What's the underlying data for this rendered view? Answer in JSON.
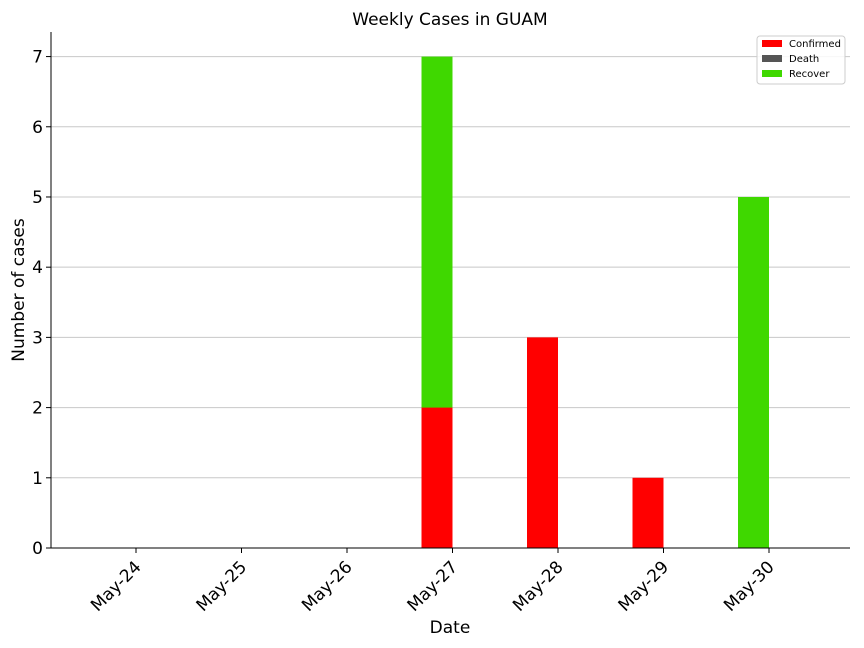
{
  "chart_data": {
    "type": "bar",
    "title": "Weekly Cases in GUAM",
    "xlabel": "Date",
    "ylabel": "Number of cases",
    "categories": [
      "May-24",
      "May-25",
      "May-26",
      "May-27",
      "May-28",
      "May-29",
      "May-30"
    ],
    "series": [
      {
        "name": "Recover",
        "color": "#3fd800",
        "values": [
          0,
          0,
          0,
          7,
          0,
          0,
          5
        ]
      },
      {
        "name": "Confirmed",
        "color": "#ff0000",
        "values": [
          0,
          0,
          0,
          2,
          3,
          1,
          0
        ]
      },
      {
        "name": "Death",
        "color": "#555555",
        "values": [
          0,
          0,
          0,
          0,
          0,
          0,
          0
        ]
      }
    ],
    "legend_order": [
      "Confirmed",
      "Death",
      "Recover"
    ],
    "yticks": [
      0,
      1,
      2,
      3,
      4,
      5,
      6,
      7
    ],
    "ylim": [
      0,
      7.35
    ],
    "grid": "horizontal",
    "legend_position": "top-right"
  }
}
